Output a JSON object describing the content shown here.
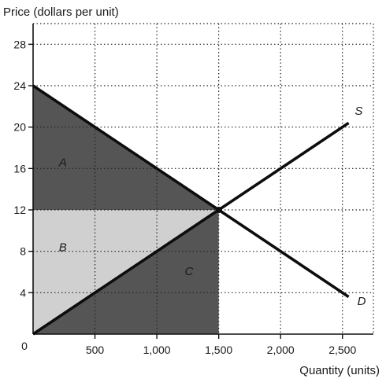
{
  "chart_data": {
    "type": "line",
    "ylabel": "Price (dollars per unit)",
    "xlabel": "Quantity (units)",
    "xlim": [
      0,
      2750
    ],
    "ylim": [
      0,
      30
    ],
    "x_ticks": [
      500,
      1000,
      1500,
      2000,
      2500
    ],
    "x_tick_labels": [
      "500",
      "1,000",
      "1,500",
      "2,000",
      "2,500"
    ],
    "y_ticks": [
      4,
      8,
      12,
      16,
      20,
      24,
      28
    ],
    "y_tick_labels": [
      "4",
      "8",
      "12",
      "16",
      "20",
      "24",
      "28"
    ],
    "origin_label": "0",
    "grid": "dotted",
    "series": [
      {
        "name": "S",
        "x": [
          0,
          2550
        ],
        "y": [
          0,
          20.4
        ]
      },
      {
        "name": "D",
        "x": [
          0,
          2550
        ],
        "y": [
          24,
          3.6
        ]
      }
    ],
    "regions": [
      {
        "label": "A",
        "color": "#555555",
        "points": [
          [
            0,
            24
          ],
          [
            1500,
            12
          ],
          [
            0,
            12
          ]
        ],
        "label_at": [
          240,
          16.2
        ]
      },
      {
        "label": "B",
        "color": "#d0d0d0",
        "points": [
          [
            0,
            0
          ],
          [
            1500,
            12
          ],
          [
            0,
            12
          ]
        ],
        "label_at": [
          240,
          8
        ]
      },
      {
        "label": "C",
        "color": "#555555",
        "points": [
          [
            0,
            0
          ],
          [
            1500,
            12
          ],
          [
            1500,
            0
          ]
        ],
        "label_at": [
          1260,
          5.7
        ]
      }
    ],
    "equilibrium": {
      "x": 1500,
      "y": 12
    },
    "curve_labels": [
      {
        "text": "S",
        "at": [
          2600,
          21.2
        ]
      },
      {
        "text": "D",
        "at": [
          2620,
          2.8
        ]
      }
    ]
  }
}
